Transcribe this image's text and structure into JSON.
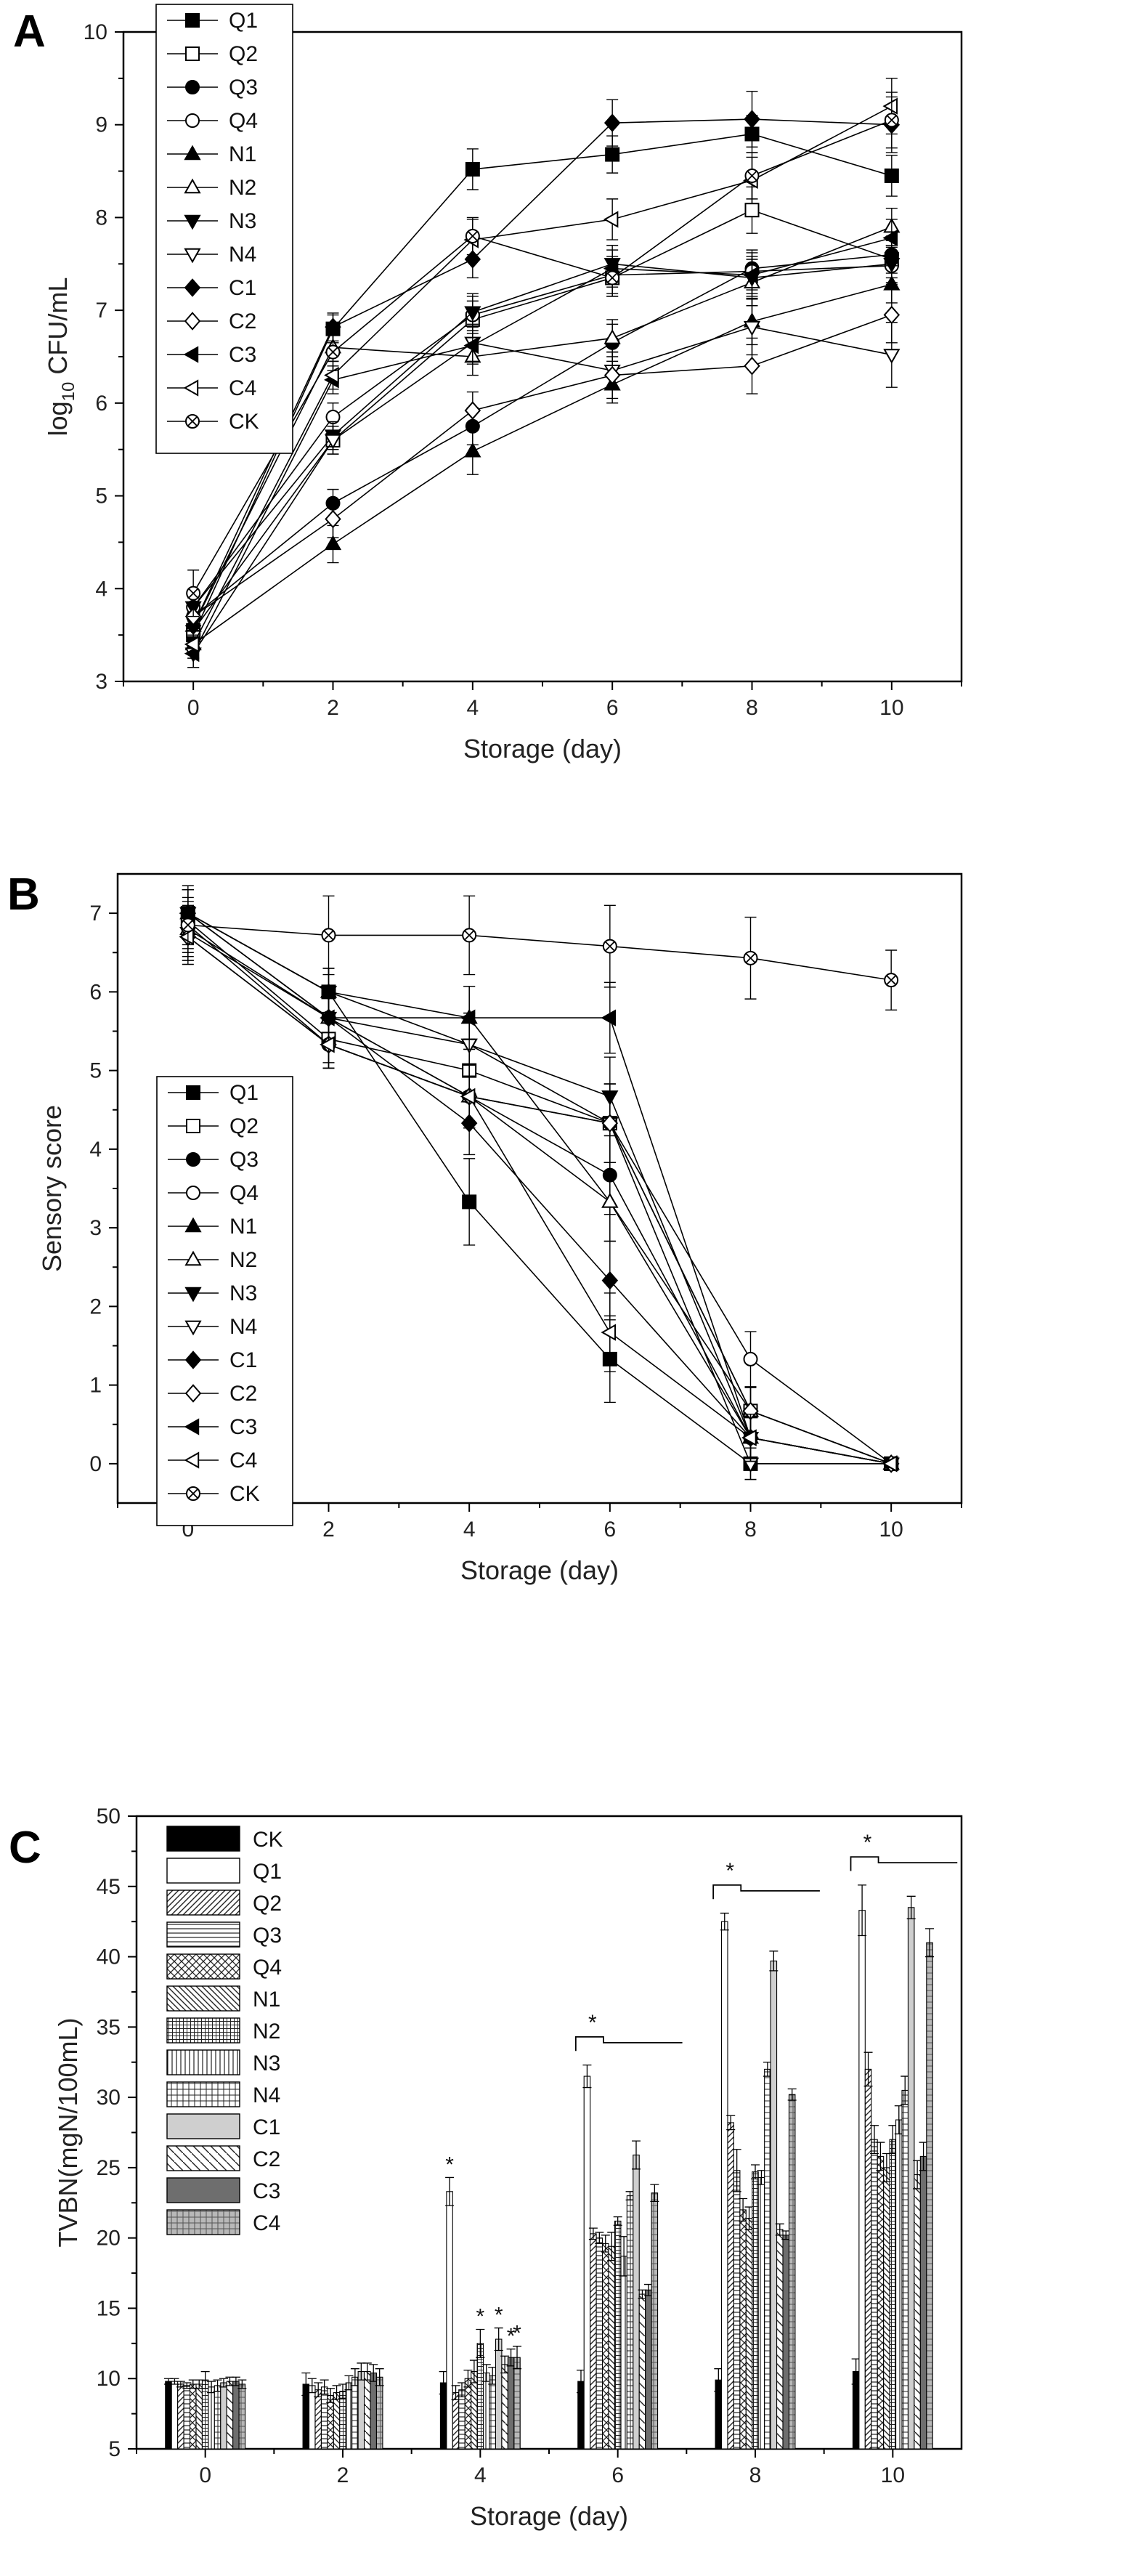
{
  "chart_data": [
    {
      "panel": "A",
      "type": "line",
      "title": "",
      "xlabel": "Storage (day)",
      "ylabel_prefix": "log",
      "ylabel_sub": "10",
      "ylabel_suffix": " CFU/mL",
      "x": [
        0,
        2,
        4,
        6,
        8,
        10
      ],
      "xlim": [
        -1,
        11
      ],
      "ylim": [
        3,
        10
      ],
      "xticks": [
        0,
        2,
        4,
        6,
        8,
        10
      ],
      "yticks": [
        3,
        4,
        5,
        6,
        7,
        8,
        9,
        10
      ],
      "legend_position": "top-left",
      "series": [
        {
          "name": "Q1",
          "marker": "square-filled",
          "values": [
            3.5,
            6.8,
            8.52,
            8.68,
            8.9,
            8.45
          ],
          "errors": [
            0.15,
            0.15,
            0.22,
            0.2,
            0.2,
            0.22
          ]
        },
        {
          "name": "Q2",
          "marker": "square-open",
          "values": [
            3.55,
            5.6,
            6.9,
            7.35,
            8.08,
            7.55
          ],
          "errors": [
            0.15,
            0.15,
            0.2,
            0.2,
            0.25,
            0.2
          ]
        },
        {
          "name": "Q3",
          "marker": "circle-filled",
          "values": [
            3.7,
            4.92,
            5.75,
            6.65,
            7.45,
            7.6
          ],
          "errors": [
            0.15,
            0.15,
            0.2,
            0.2,
            0.2,
            0.2
          ]
        },
        {
          "name": "Q4",
          "marker": "circle-open",
          "values": [
            3.8,
            5.85,
            6.95,
            7.38,
            7.42,
            7.48
          ],
          "errors": [
            0.15,
            0.15,
            0.2,
            0.2,
            0.2,
            0.2
          ]
        },
        {
          "name": "N1",
          "marker": "triangle-up-filled",
          "values": [
            3.4,
            4.48,
            5.48,
            6.2,
            6.88,
            7.28
          ],
          "errors": [
            0.15,
            0.2,
            0.25,
            0.2,
            0.25,
            0.2
          ]
        },
        {
          "name": "N2",
          "marker": "triangle-up-open",
          "values": [
            3.6,
            6.6,
            6.5,
            6.7,
            7.3,
            7.9
          ],
          "errors": [
            0.15,
            0.15,
            0.2,
            0.2,
            0.25,
            0.2
          ]
        },
        {
          "name": "N3",
          "marker": "triangle-down-filled",
          "values": [
            3.8,
            5.65,
            6.98,
            7.5,
            7.35,
            7.5
          ],
          "errors": [
            0.15,
            0.15,
            0.2,
            0.2,
            0.2,
            0.2
          ]
        },
        {
          "name": "N4",
          "marker": "triangle-down-open",
          "values": [
            3.3,
            5.6,
            6.65,
            6.35,
            6.82,
            6.52
          ],
          "errors": [
            0.15,
            0.15,
            0.2,
            0.2,
            0.3,
            0.35
          ]
        },
        {
          "name": "C1",
          "marker": "diamond-filled",
          "values": [
            3.6,
            6.82,
            7.55,
            9.02,
            9.06,
            9.0
          ],
          "errors": [
            0.15,
            0.15,
            0.2,
            0.25,
            0.3,
            0.3
          ]
        },
        {
          "name": "C2",
          "marker": "diamond-open",
          "values": [
            3.7,
            4.75,
            5.92,
            6.3,
            6.4,
            6.95
          ],
          "errors": [
            0.2,
            0.2,
            0.2,
            0.25,
            0.3,
            0.3
          ]
        },
        {
          "name": "C3",
          "marker": "triangle-left-filled",
          "values": [
            3.3,
            6.25,
            6.62,
            7.45,
            7.38,
            7.78
          ],
          "errors": [
            0.15,
            0.15,
            0.2,
            0.2,
            0.2,
            0.2
          ]
        },
        {
          "name": "C4",
          "marker": "triangle-left-open",
          "values": [
            3.4,
            6.3,
            7.76,
            7.98,
            8.4,
            9.2
          ],
          "errors": [
            0.15,
            0.15,
            0.22,
            0.22,
            0.25,
            0.3
          ]
        },
        {
          "name": "CK",
          "marker": "circle-x",
          "values": [
            3.95,
            6.55,
            7.8,
            7.35,
            8.45,
            9.05
          ],
          "errors": [
            0.25,
            0.2,
            0.2,
            0.2,
            0.25,
            0.3
          ]
        }
      ]
    },
    {
      "panel": "B",
      "type": "line",
      "title": "",
      "xlabel": "Storage (day)",
      "ylabel": "Sensory score",
      "x": [
        0,
        2,
        4,
        6,
        8,
        10
      ],
      "xlim": [
        -1,
        11
      ],
      "ylim": [
        -0.5,
        7.5
      ],
      "xticks": [
        0,
        2,
        4,
        6,
        8,
        10
      ],
      "yticks": [
        0,
        1,
        2,
        3,
        4,
        5,
        6,
        7
      ],
      "legend_position": "center-left",
      "series": [
        {
          "name": "Q1",
          "marker": "square-filled",
          "values": [
            7.0,
            6.0,
            3.33,
            1.33,
            0.0,
            0.0
          ],
          "errors": [
            0.3,
            0.3,
            0.55,
            0.55,
            0.2,
            0.05
          ]
        },
        {
          "name": "Q2",
          "marker": "square-open",
          "values": [
            6.9,
            5.4,
            5.0,
            4.33,
            0.67,
            0.0
          ],
          "errors": [
            0.3,
            0.3,
            0.4,
            0.5,
            0.3,
            0.05
          ]
        },
        {
          "name": "Q3",
          "marker": "circle-filled",
          "values": [
            7.0,
            5.67,
            4.67,
            3.67,
            0.33,
            0.0
          ],
          "errors": [
            0.3,
            0.3,
            0.4,
            0.5,
            0.3,
            0.05
          ]
        },
        {
          "name": "Q4",
          "marker": "circle-open",
          "values": [
            6.85,
            5.33,
            4.67,
            4.33,
            1.33,
            0.0
          ],
          "errors": [
            0.3,
            0.3,
            0.4,
            0.5,
            0.35,
            0.05
          ]
        },
        {
          "name": "N1",
          "marker": "triangle-up-filled",
          "values": [
            7.0,
            6.0,
            5.67,
            3.33,
            0.33,
            0.0
          ],
          "errors": [
            0.3,
            0.3,
            0.4,
            0.5,
            0.3,
            0.05
          ]
        },
        {
          "name": "N2",
          "marker": "triangle-up-open",
          "values": [
            6.8,
            5.67,
            4.67,
            3.33,
            0.67,
            0.0
          ],
          "errors": [
            0.3,
            0.3,
            0.4,
            0.5,
            0.3,
            0.05
          ]
        },
        {
          "name": "N3",
          "marker": "triangle-down-filled",
          "values": [
            7.0,
            6.0,
            5.33,
            4.67,
            0.33,
            0.0
          ],
          "errors": [
            0.3,
            0.3,
            0.4,
            0.5,
            0.3,
            0.05
          ]
        },
        {
          "name": "N4",
          "marker": "triangle-down-open",
          "values": [
            6.75,
            5.67,
            5.33,
            4.33,
            0.0,
            0.0
          ],
          "errors": [
            0.3,
            0.3,
            0.4,
            0.5,
            0.2,
            0.05
          ]
        },
        {
          "name": "C1",
          "marker": "diamond-filled",
          "values": [
            7.0,
            5.67,
            4.33,
            2.33,
            0.33,
            0.0
          ],
          "errors": [
            0.3,
            0.3,
            0.4,
            0.5,
            0.3,
            0.05
          ]
        },
        {
          "name": "C2",
          "marker": "diamond-open",
          "values": [
            6.7,
            5.33,
            4.67,
            4.33,
            0.67,
            0.0
          ],
          "errors": [
            0.3,
            0.3,
            0.4,
            0.5,
            0.3,
            0.05
          ]
        },
        {
          "name": "C3",
          "marker": "triangle-left-filled",
          "values": [
            7.0,
            5.67,
            5.67,
            5.67,
            0.33,
            0.0
          ],
          "errors": [
            0.3,
            0.3,
            0.4,
            0.45,
            0.3,
            0.05
          ]
        },
        {
          "name": "C4",
          "marker": "triangle-left-open",
          "values": [
            6.7,
            5.33,
            4.67,
            1.67,
            0.33,
            0.0
          ],
          "errors": [
            0.3,
            0.3,
            0.4,
            0.5,
            0.3,
            0.05
          ]
        },
        {
          "name": "CK",
          "marker": "circle-x",
          "values": [
            6.85,
            6.72,
            6.72,
            6.58,
            6.43,
            6.15
          ],
          "errors": [
            0.5,
            0.5,
            0.5,
            0.52,
            0.52,
            0.38
          ]
        }
      ]
    },
    {
      "panel": "C",
      "type": "bar",
      "title": "",
      "xlabel": "Storage (day)",
      "ylabel": "TVBN(mgN/100mL)",
      "categories": [
        "0",
        "2",
        "4",
        "6",
        "8",
        "10"
      ],
      "ylim": [
        5,
        50
      ],
      "yticks": [
        5,
        10,
        15,
        20,
        25,
        30,
        35,
        40,
        45,
        50
      ],
      "legend_position": "top-left",
      "significance_marker": "*",
      "series": [
        {
          "name": "CK",
          "pattern": "solid-black",
          "values": [
            9.8,
            9.6,
            9.7,
            9.8,
            9.9,
            10.5
          ],
          "errors": [
            0.2,
            0.8,
            0.8,
            0.8,
            0.8,
            0.9
          ]
        },
        {
          "name": "Q1",
          "pattern": "open",
          "values": [
            9.8,
            9.5,
            23.3,
            31.5,
            42.5,
            43.3
          ],
          "errors": [
            0.2,
            0.5,
            1.0,
            0.8,
            0.6,
            1.8
          ]
        },
        {
          "name": "Q2",
          "pattern": "fwd-diagonal",
          "values": [
            9.6,
            9.2,
            9.0,
            20.3,
            28.2,
            32.0
          ],
          "errors": [
            0.2,
            0.5,
            0.5,
            0.4,
            0.5,
            1.2
          ]
        },
        {
          "name": "Q3",
          "pattern": "horizontal-lines",
          "values": [
            9.5,
            9.4,
            9.2,
            20.0,
            24.8,
            27.0
          ],
          "errors": [
            0.2,
            0.5,
            0.5,
            0.4,
            1.5,
            1.0
          ]
        },
        {
          "name": "Q4",
          "pattern": "crosshatch",
          "values": [
            9.6,
            8.8,
            10.0,
            19.6,
            22.0,
            25.8
          ],
          "errors": [
            0.3,
            0.5,
            0.6,
            0.6,
            0.8,
            1.0
          ]
        },
        {
          "name": "N1",
          "pattern": "back-diagonal",
          "values": [
            9.6,
            9.0,
            10.5,
            19.4,
            21.4,
            25.0
          ],
          "errors": [
            0.3,
            0.5,
            0.8,
            1.0,
            0.8,
            1.0
          ]
        },
        {
          "name": "N2",
          "pattern": "dense-grid",
          "values": [
            9.9,
            9.1,
            12.5,
            21.2,
            24.7,
            27.0
          ],
          "errors": [
            0.6,
            0.5,
            1.0,
            0.3,
            0.5,
            1.0
          ]
        },
        {
          "name": "N3",
          "pattern": "vertical-lines",
          "values": [
            9.4,
            9.7,
            10.4,
            18.7,
            24.3,
            28.4
          ],
          "errors": [
            0.4,
            0.5,
            0.6,
            1.4,
            0.5,
            1.0
          ]
        },
        {
          "name": "N4",
          "pattern": "grid",
          "values": [
            9.5,
            10.1,
            10.2,
            23.0,
            32.0,
            30.5
          ],
          "errors": [
            0.4,
            0.6,
            0.6,
            0.3,
            0.5,
            1.0
          ]
        },
        {
          "name": "C1",
          "pattern": "light-gray",
          "values": [
            9.7,
            10.5,
            12.8,
            25.9,
            39.7,
            43.5
          ],
          "errors": [
            0.3,
            0.6,
            0.8,
            1.0,
            0.7,
            0.8
          ]
        },
        {
          "name": "C2",
          "pattern": "sparse-diagonal",
          "values": [
            9.8,
            10.5,
            11.0,
            16.0,
            20.6,
            24.5
          ],
          "errors": [
            0.3,
            0.6,
            0.6,
            0.3,
            0.4,
            1.0
          ]
        },
        {
          "name": "C3",
          "pattern": "dark-gray",
          "values": [
            9.8,
            10.4,
            11.5,
            16.3,
            20.2,
            25.8
          ],
          "errors": [
            0.3,
            0.6,
            0.6,
            0.4,
            0.3,
            1.0
          ]
        },
        {
          "name": "C4",
          "pattern": "gray-grid",
          "values": [
            9.6,
            10.1,
            11.5,
            23.2,
            30.2,
            41.0
          ],
          "errors": [
            0.3,
            0.6,
            0.8,
            0.6,
            0.4,
            1.0
          ]
        }
      ]
    }
  ]
}
